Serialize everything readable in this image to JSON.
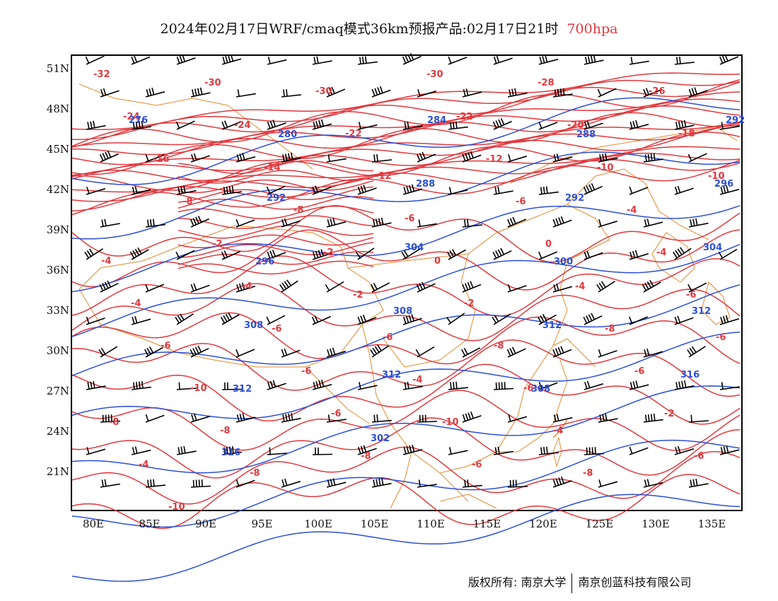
{
  "header": {
    "title": "2024年02月17日WRF/cmaq模式36km预报产品:02月17日21时",
    "level": "700hpa"
  },
  "axes": {
    "lat_labels": [
      "51N",
      "48N",
      "45N",
      "42N",
      "39N",
      "36N",
      "33N",
      "30N",
      "27N",
      "24N",
      "21N"
    ],
    "lon_labels": [
      "80E",
      "85E",
      "90E",
      "95E",
      "100E",
      "105E",
      "110E",
      "115E",
      "120E",
      "125E",
      "130E",
      "135E"
    ]
  },
  "colors": {
    "temperature": "#e0393e",
    "height": "#2c4fd8",
    "border": "#e08a2e",
    "wind": "#000000"
  },
  "map_labels": {
    "temperature": [
      "-32",
      "-30",
      "-30",
      "-30",
      "-28",
      "-26",
      "-24",
      "-24",
      "-22",
      "-22",
      "-20",
      "-18",
      "-16",
      "-14",
      "-12",
      "-12",
      "-10",
      "-10",
      "-8",
      "-8",
      "-6",
      "-6",
      "-4",
      "-4",
      "-2",
      "-2",
      "0",
      "0",
      "-4",
      "-4",
      "-4",
      "-2",
      "-2",
      "-4",
      "-6",
      "-6",
      "-6",
      "-6",
      "-8",
      "-8",
      "-6",
      "-10",
      "-6",
      "-4",
      "-6",
      "-6",
      "-8",
      "-8",
      "-6",
      "-10",
      "-4",
      "-2",
      "-4",
      "-8",
      "-8",
      "-6",
      "-8",
      "-6",
      "-10"
    ],
    "height": [
      "276",
      "280",
      "284",
      "288",
      "292",
      "292",
      "288",
      "292",
      "296",
      "296",
      "304",
      "300",
      "304",
      "308",
      "308",
      "312",
      "312",
      "312",
      "312",
      "308",
      "316",
      "316",
      "302"
    ]
  },
  "footer": {
    "left": "版权所有: 南京大学",
    "right": "南京创蓝科技有限公司"
  }
}
